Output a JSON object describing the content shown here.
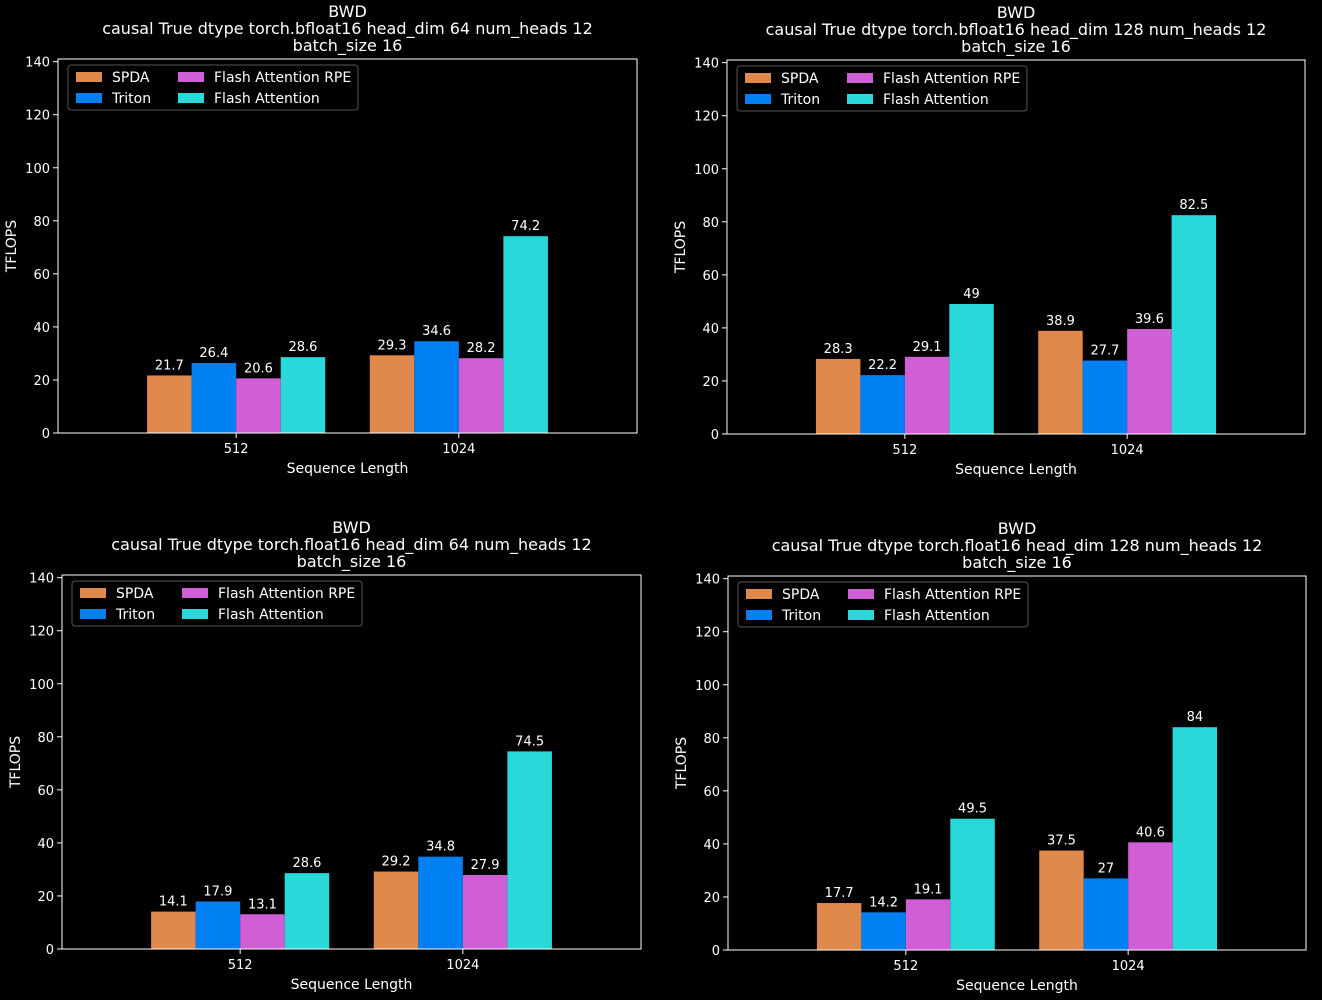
{
  "chart_data": [
    {
      "type": "bar",
      "title": "BWD",
      "subtitle": "causal True dtype torch.bfloat16 head_dim 64 num_heads 12",
      "subtitle2": "batch_size 16",
      "xlabel": "Sequence Length",
      "ylabel": "TFLOPS",
      "categories": [
        "512",
        "1024"
      ],
      "ylim": [
        0,
        141
      ],
      "yticks": [
        0,
        20,
        40,
        60,
        80,
        100,
        120,
        140
      ],
      "legend": "top-left",
      "grid": false,
      "series": [
        {
          "name": "SPDA",
          "values": [
            21.7,
            29.3
          ]
        },
        {
          "name": "Triton",
          "values": [
            26.4,
            34.6
          ]
        },
        {
          "name": "Flash Attention RPE",
          "values": [
            20.6,
            28.2
          ]
        },
        {
          "name": "Flash Attention",
          "values": [
            28.6,
            74.2
          ]
        }
      ]
    },
    {
      "type": "bar",
      "title": "BWD",
      "subtitle": "causal True dtype torch.bfloat16 head_dim 128 num_heads 12",
      "subtitle2": "batch_size 16",
      "xlabel": "Sequence Length",
      "ylabel": "TFLOPS",
      "categories": [
        "512",
        "1024"
      ],
      "ylim": [
        0,
        141
      ],
      "yticks": [
        0,
        20,
        40,
        60,
        80,
        100,
        120,
        140
      ],
      "legend": "top-left",
      "grid": false,
      "series": [
        {
          "name": "SPDA",
          "values": [
            28.3,
            38.9
          ]
        },
        {
          "name": "Triton",
          "values": [
            22.2,
            27.7
          ]
        },
        {
          "name": "Flash Attention RPE",
          "values": [
            29.1,
            39.6
          ]
        },
        {
          "name": "Flash Attention",
          "values": [
            49,
            82.5
          ]
        }
      ]
    },
    {
      "type": "bar",
      "title": "BWD",
      "subtitle": "causal True dtype torch.float16 head_dim 64 num_heads 12",
      "subtitle2": "batch_size 16",
      "xlabel": "Sequence Length",
      "ylabel": "TFLOPS",
      "categories": [
        "512",
        "1024"
      ],
      "ylim": [
        0,
        141
      ],
      "yticks": [
        0,
        20,
        40,
        60,
        80,
        100,
        120,
        140
      ],
      "legend": "top-left",
      "grid": false,
      "series": [
        {
          "name": "SPDA",
          "values": [
            14.1,
            29.2
          ]
        },
        {
          "name": "Triton",
          "values": [
            17.9,
            34.8
          ]
        },
        {
          "name": "Flash Attention RPE",
          "values": [
            13.1,
            27.9
          ]
        },
        {
          "name": "Flash Attention",
          "values": [
            28.6,
            74.5
          ]
        }
      ]
    },
    {
      "type": "bar",
      "title": "BWD",
      "subtitle": "causal True dtype torch.float16 head_dim 128 num_heads 12",
      "subtitle2": "batch_size 16",
      "xlabel": "Sequence Length",
      "ylabel": "TFLOPS",
      "categories": [
        "512",
        "1024"
      ],
      "ylim": [
        0,
        141
      ],
      "yticks": [
        0,
        20,
        40,
        60,
        80,
        100,
        120,
        140
      ],
      "legend": "top-left",
      "grid": false,
      "series": [
        {
          "name": "SPDA",
          "values": [
            17.7,
            37.5
          ]
        },
        {
          "name": "Triton",
          "values": [
            14.2,
            27
          ]
        },
        {
          "name": "Flash Attention RPE",
          "values": [
            19.1,
            40.6
          ]
        },
        {
          "name": "Flash Attention",
          "values": [
            49.5,
            84
          ]
        }
      ]
    }
  ],
  "colors": {
    "series": [
      "#e0894d",
      "#0080f2",
      "#d05ed4",
      "#29d8d8"
    ],
    "background": "#000000",
    "axis": "#ffffff"
  }
}
